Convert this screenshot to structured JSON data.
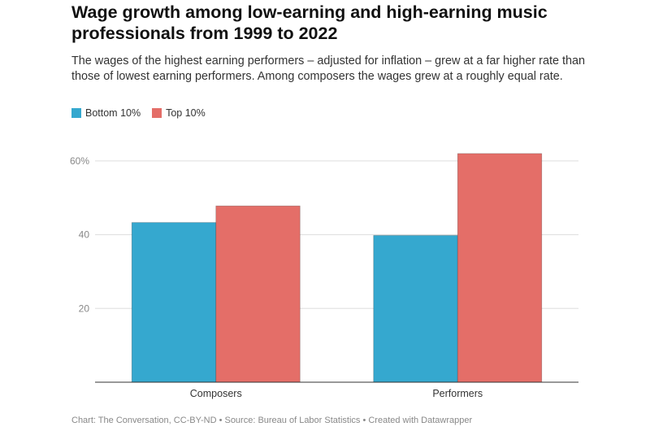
{
  "title": "Wage growth among low-earning and high-earning music professionals from 1999 to 2022",
  "subtitle": "The wages of the highest earning performers – adjusted for inflation – grew at a far higher rate than those of lowest earning performers. Among composers the wages grew at a roughly equal rate.",
  "footer": "Chart: The Conversation, CC-BY-ND • Source: Bureau of Labor Statistics • Created with Datawrapper",
  "chart_data": {
    "type": "bar",
    "categories": [
      "Composers",
      "Performers"
    ],
    "series": [
      {
        "name": "Bottom 10%",
        "color": "#35a8cf",
        "values": [
          43.3,
          39.8
        ]
      },
      {
        "name": "Top 10%",
        "color": "#e46e68",
        "values": [
          47.8,
          62.0
        ]
      }
    ],
    "yticks": [
      {
        "v": 20,
        "label": "20"
      },
      {
        "v": 40,
        "label": "40"
      },
      {
        "v": 60,
        "label": "60%"
      }
    ],
    "ylim": [
      0,
      65
    ],
    "grid": true,
    "legend": "top-left"
  }
}
